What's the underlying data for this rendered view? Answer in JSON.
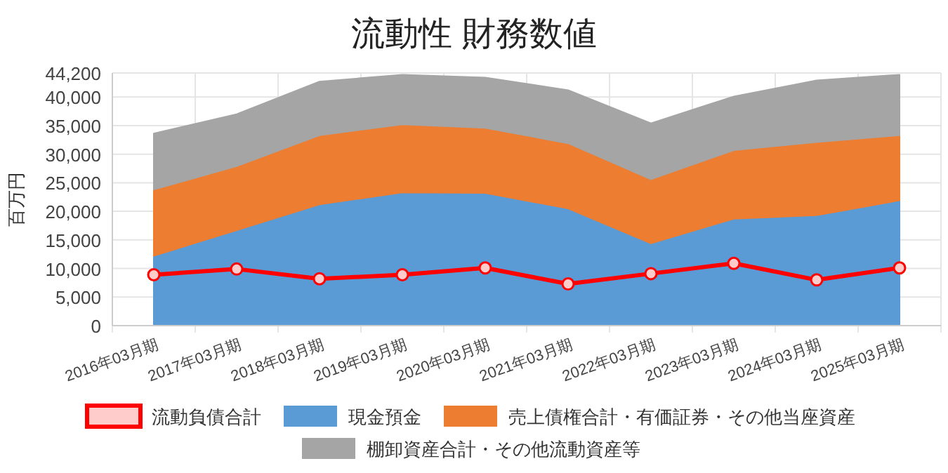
{
  "chart_data": {
    "type": "area",
    "title": "流動性 財務数値",
    "ylabel": "百万円",
    "stacked": true,
    "categories": [
      "2016年03月期",
      "2017年03月期",
      "2018年03月期",
      "2019年03月期",
      "2020年03月期",
      "2021年03月期",
      "2022年03月期",
      "2023年03月期",
      "2024年03月期",
      "2025年03月期"
    ],
    "series": [
      {
        "name": "流動負債合計",
        "type": "line",
        "color": "#ff0000",
        "marker": "circle",
        "values": [
          8900,
          9900,
          8200,
          8900,
          10100,
          7300,
          9100,
          10900,
          8000,
          10100
        ]
      },
      {
        "name": "現金預金",
        "color": "#5b9bd5",
        "values": [
          12200,
          16700,
          21200,
          23300,
          23200,
          20500,
          14400,
          18700,
          19300,
          21900
        ]
      },
      {
        "name": "売上債権合計・有価証券・その他当座資産",
        "color": "#ed7d31",
        "values": [
          11600,
          11200,
          12100,
          11900,
          11400,
          11400,
          11200,
          12000,
          12800,
          11400
        ]
      },
      {
        "name": "棚卸資産合計・その他流動資産等",
        "color": "#a5a5a5",
        "values": [
          9800,
          9100,
          9400,
          8700,
          8800,
          9300,
          9800,
          9400,
          10800,
          10600
        ]
      }
    ],
    "ylim": [
      0,
      44200
    ],
    "yticks": [
      0,
      {
        "value": 5000,
        "label": "5,000"
      },
      {
        "value": 10000,
        "label": "10,000"
      },
      {
        "value": 15000,
        "label": "15,000"
      },
      {
        "value": 20000,
        "label": "20,000"
      },
      {
        "value": 25000,
        "label": "25,000"
      },
      {
        "value": 30000,
        "label": "30,000"
      },
      {
        "value": 35000,
        "label": "35,000"
      },
      {
        "value": 40000,
        "label": "40,000"
      },
      {
        "value": 44200,
        "label": "44,200"
      }
    ],
    "grid": true,
    "legend": "bottom"
  }
}
